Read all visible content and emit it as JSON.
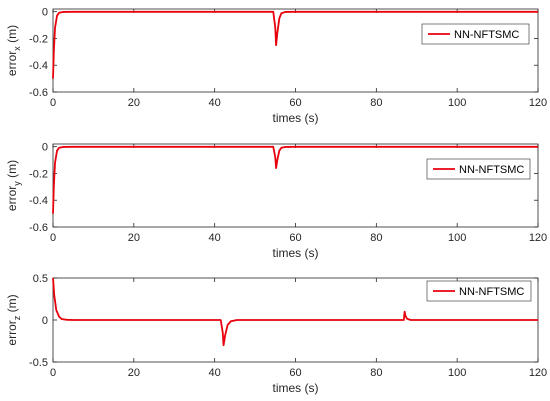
{
  "chart_data": [
    {
      "type": "line",
      "xlabel": "times (s)",
      "ylabel": "error_x (m)",
      "ylabel_main": "error",
      "ylabel_sub": "x",
      "ylabel_unit": " (m)",
      "xlim": [
        0,
        120
      ],
      "ylim": [
        -0.6,
        0.02
      ],
      "xticks": [
        0,
        20,
        40,
        60,
        80,
        100,
        120
      ],
      "yticks": [
        -0.6,
        -0.4,
        -0.2,
        0
      ],
      "ytick_labels": [
        "-0.6",
        "-0.4",
        "-0.2",
        "0"
      ],
      "grid": false,
      "legend_position": "top-right",
      "color": "#e8000b",
      "series": [
        {
          "name": "NN-NFTSMC",
          "x": [
            0,
            0.2,
            0.5,
            1.0,
            1.5,
            2.5,
            5,
            20,
            40,
            54.5,
            55.0,
            55.2,
            55.5,
            56.0,
            56.5,
            57.5,
            60,
            80,
            100,
            120
          ],
          "y": [
            -0.5,
            -0.3,
            -0.12,
            -0.03,
            -0.008,
            -0.002,
            -0.001,
            -0.001,
            -0.001,
            -0.001,
            -0.12,
            -0.25,
            -0.16,
            -0.05,
            -0.012,
            -0.002,
            -0.001,
            -0.001,
            -0.001,
            -0.001
          ]
        }
      ]
    },
    {
      "type": "line",
      "xlabel": "times (s)",
      "ylabel": "error_y (m)",
      "ylabel_main": "error",
      "ylabel_sub": "y",
      "ylabel_unit": " (m)",
      "xlim": [
        0,
        120
      ],
      "ylim": [
        -0.6,
        0.02
      ],
      "xticks": [
        0,
        20,
        40,
        60,
        80,
        100,
        120
      ],
      "yticks": [
        -0.6,
        -0.4,
        -0.2,
        0
      ],
      "ytick_labels": [
        "-0.6",
        "-0.4",
        "-0.2",
        "0"
      ],
      "grid": false,
      "legend_position": "top-right",
      "color": "#e8000b",
      "series": [
        {
          "name": "NN-NFTSMC",
          "x": [
            0,
            0.2,
            0.5,
            1.0,
            1.5,
            2.5,
            5,
            20,
            40,
            54.5,
            55.0,
            55.2,
            55.5,
            56.0,
            56.5,
            57.5,
            60,
            80,
            100,
            120
          ],
          "y": [
            -0.5,
            -0.3,
            -0.12,
            -0.03,
            -0.008,
            -0.002,
            -0.001,
            -0.001,
            -0.001,
            -0.001,
            -0.08,
            -0.16,
            -0.1,
            -0.03,
            -0.008,
            -0.002,
            -0.001,
            -0.001,
            -0.001,
            -0.001
          ]
        }
      ]
    },
    {
      "type": "line",
      "xlabel": "times (s)",
      "ylabel": "error_z (m)",
      "ylabel_main": "error",
      "ylabel_sub": "z",
      "ylabel_unit": " (m)",
      "xlim": [
        0,
        120
      ],
      "ylim": [
        -0.5,
        0.5
      ],
      "xticks": [
        0,
        20,
        40,
        60,
        80,
        100,
        120
      ],
      "yticks": [
        -0.5,
        0,
        0.5
      ],
      "ytick_labels": [
        "-0.5",
        "0",
        "0.5"
      ],
      "grid": false,
      "legend_position": "top-right",
      "color": "#e8000b",
      "series": [
        {
          "name": "NN-NFTSMC",
          "x": [
            0,
            0.3,
            0.8,
            1.5,
            2.2,
            3.5,
            5,
            20,
            41.5,
            42.0,
            42.2,
            42.6,
            43.2,
            44.0,
            45.5,
            60,
            86.8,
            87.0,
            87.2,
            87.6,
            88.5,
            100,
            120
          ],
          "y": [
            0.5,
            0.3,
            0.12,
            0.04,
            0.01,
            0.002,
            0.0,
            0.0,
            0.0,
            -0.15,
            -0.3,
            -0.18,
            -0.06,
            -0.015,
            0.0,
            0.0,
            0.0,
            0.1,
            0.05,
            0.015,
            0.0,
            0.0,
            0.0
          ]
        }
      ]
    }
  ]
}
